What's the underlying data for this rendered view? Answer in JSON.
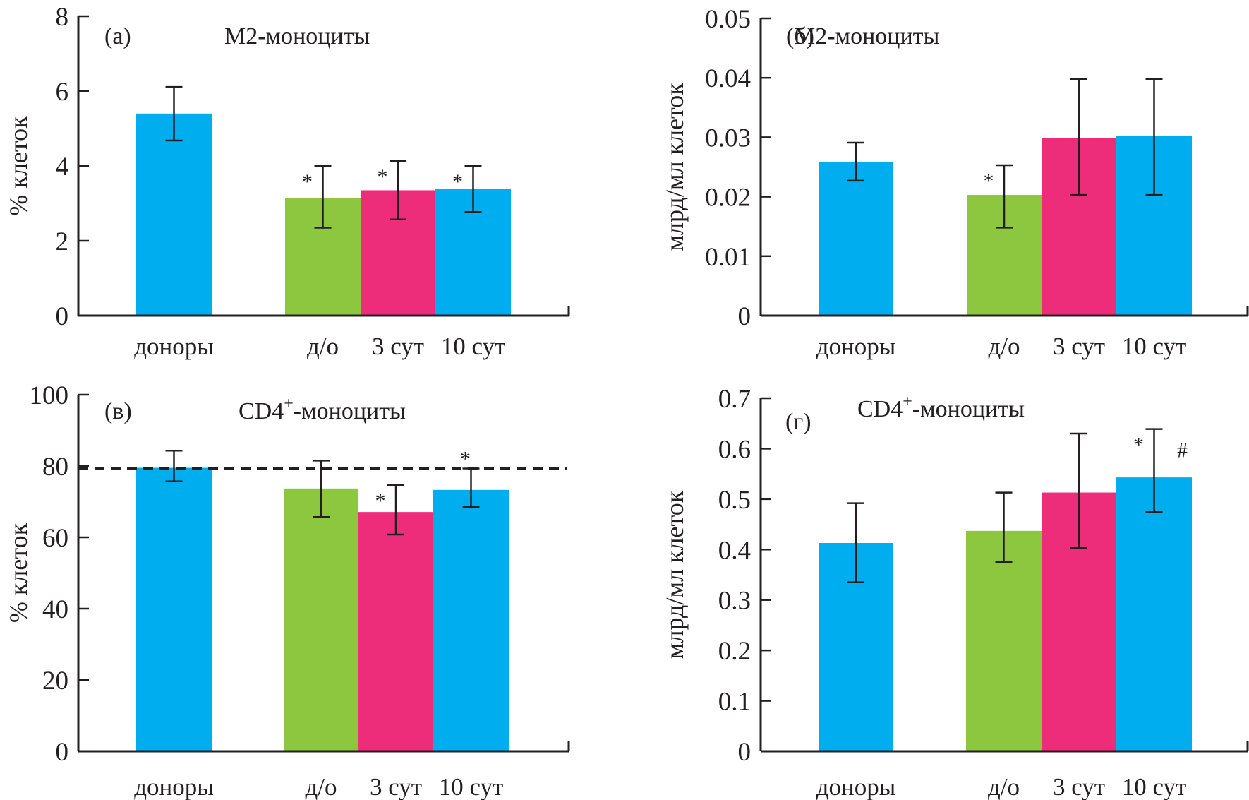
{
  "figure": {
    "colors": {
      "donors": "#00AEEF",
      "preop": "#8DC63F",
      "day3": "#EE2D7A",
      "day10": "#00AEEF",
      "axis": "#231f20"
    }
  },
  "chart_data": [
    {
      "id": "a",
      "type": "bar",
      "panel_label": "(а)",
      "title": "M2-моноциты",
      "title_sup": "",
      "xlabel": "",
      "ylabel": "% клеток",
      "ylim": [
        0,
        8
      ],
      "yticks": [
        0,
        2,
        4,
        6,
        8
      ],
      "ytick_labels": [
        "0",
        "2",
        "4",
        "6",
        "8"
      ],
      "categories": [
        "доноры",
        "д/о",
        "3 сут",
        "10 сут"
      ],
      "values": [
        5.4,
        3.15,
        3.35,
        3.38
      ],
      "err_high": [
        6.11,
        4.0,
        4.13,
        4.0
      ],
      "err_low": [
        4.68,
        2.35,
        2.57,
        2.77
      ],
      "marks": [
        {
          "category": "д/о",
          "text": "*",
          "side": "left"
        },
        {
          "category": "3 сут",
          "text": "*",
          "side": "left"
        },
        {
          "category": "10 сут",
          "text": "*",
          "side": "left"
        }
      ],
      "reference_line": null
    },
    {
      "id": "b",
      "type": "bar",
      "panel_label": "(б)",
      "title": "M2-моноциты",
      "title_sup": "",
      "xlabel": "",
      "ylabel": "млрд/мл клеток",
      "ylim": [
        0,
        0.05
      ],
      "yticks": [
        0,
        0.01,
        0.02,
        0.03,
        0.04,
        0.05
      ],
      "ytick_labels": [
        "0",
        "0.01",
        "0.02",
        "0.03",
        "0.04",
        "0.05"
      ],
      "categories": [
        "доноры",
        "д/о",
        "3 сут",
        "10 сут"
      ],
      "values": [
        0.0259,
        0.0203,
        0.0299,
        0.0302
      ],
      "err_high": [
        0.0291,
        0.0253,
        0.0398,
        0.0398
      ],
      "err_low": [
        0.0227,
        0.0148,
        0.0203,
        0.0203
      ],
      "marks": [
        {
          "category": "д/о",
          "text": "*",
          "side": "left"
        }
      ],
      "reference_line": null
    },
    {
      "id": "v",
      "type": "bar",
      "panel_label": "(в)",
      "title": "CD4",
      "title_sup": "+",
      "title_suffix": "-моноциты",
      "xlabel": "",
      "ylabel": "% клеток",
      "ylim": [
        0,
        100
      ],
      "yticks": [
        0,
        20,
        40,
        60,
        80,
        100
      ],
      "ytick_labels": [
        "0",
        "20",
        "40",
        "60",
        "80",
        "100"
      ],
      "categories": [
        "доноры",
        "д/о",
        "3 сут",
        "10 сут"
      ],
      "values": [
        79.5,
        73.7,
        67.1,
        73.3
      ],
      "err_high": [
        84.3,
        81.5,
        74.7,
        79.3
      ],
      "err_low": [
        75.7,
        65.7,
        60.8,
        68.5
      ],
      "marks": [
        {
          "category": "3 сут",
          "text": "*",
          "side": "left"
        },
        {
          "category": "10 сут",
          "text": "*",
          "side": "top"
        }
      ],
      "reference_line": {
        "value": 79.3,
        "style": "dashed"
      }
    },
    {
      "id": "g",
      "type": "bar",
      "panel_label": "(г)",
      "title": "CD4",
      "title_sup": "+",
      "title_suffix": "-моноциты",
      "xlabel": "",
      "ylabel": "млрд/мл клеток",
      "ylim": [
        0,
        0.7
      ],
      "yticks": [
        0,
        0.1,
        0.2,
        0.3,
        0.4,
        0.5,
        0.6,
        0.7
      ],
      "ytick_labels": [
        "0",
        "0.1",
        "0.2",
        "0.3",
        "0.4",
        "0.5",
        "0.6",
        "0.7"
      ],
      "categories": [
        "доноры",
        "д/о",
        "3 сут",
        "10 сут"
      ],
      "values": [
        0.413,
        0.437,
        0.513,
        0.543
      ],
      "err_high": [
        0.492,
        0.513,
        0.63,
        0.639
      ],
      "err_low": [
        0.335,
        0.375,
        0.403,
        0.475
      ],
      "marks": [
        {
          "category": "10 сут",
          "text": "*",
          "side": "left"
        },
        {
          "category": "10 сут",
          "text": "#",
          "side": "right"
        }
      ],
      "reference_line": null
    }
  ]
}
